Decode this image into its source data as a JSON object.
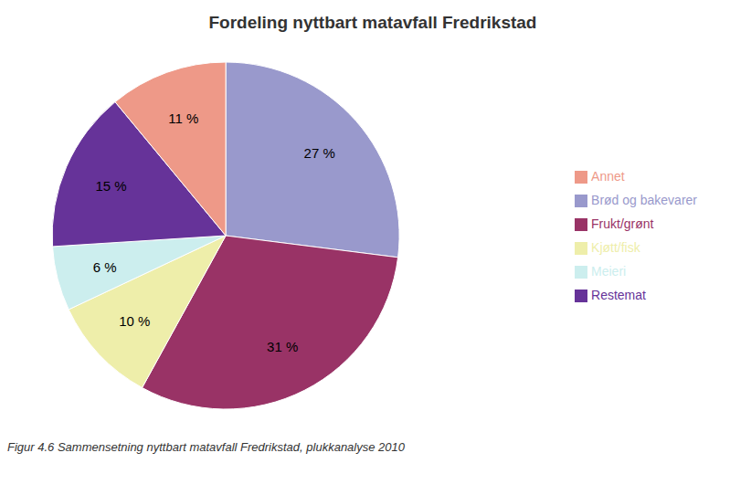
{
  "chart_data": {
    "type": "pie",
    "title": "Fordeling nyttbart matavfall Fredrikstad",
    "caption": "Figur 4.6 Sammensetning nyttbart matavfall Fredrikstad, plukkanalyse 2010",
    "categories": [
      "Brød og bakevarer",
      "Frukt/grønt",
      "Kjøtt/fisk",
      "Meieri",
      "Restemat",
      "Annet"
    ],
    "values": [
      27,
      31,
      10,
      6,
      15,
      11
    ],
    "value_labels": [
      "27 %",
      "31 %",
      "10 %",
      "6 %",
      "15 %",
      "11 %"
    ],
    "colors": [
      "#9999CC",
      "#993366",
      "#EEEEAA",
      "#CCEEEE",
      "#663399",
      "#EE9988"
    ],
    "data_labels": true,
    "legend": "right"
  }
}
